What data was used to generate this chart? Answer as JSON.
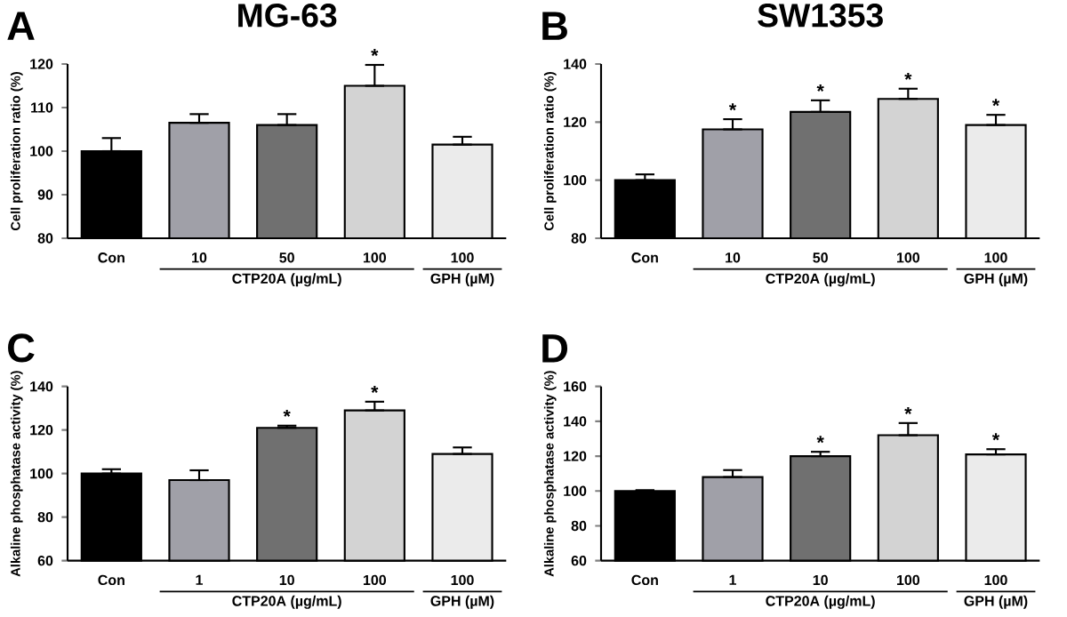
{
  "chart_data": [
    {
      "type": "bar",
      "title": "MG-63",
      "ylabel": "Cell proliferation ratio (%)",
      "categories": [
        "Con",
        "10",
        "50",
        "100",
        "100"
      ],
      "values": [
        100,
        106.5,
        106,
        115,
        101.5
      ],
      "errors": [
        [
          100,
          103
        ],
        [
          106.5,
          108.5
        ],
        [
          106,
          108.5
        ],
        [
          115,
          119.8
        ],
        [
          101.5,
          103.3
        ]
      ],
      "value_labels": [
        null,
        null,
        null,
        "*",
        null
      ],
      "colors": [
        "#000000",
        "#a0a0a8",
        "#707070",
        "#d3d3d3",
        "#ebebeb"
      ],
      "ylim": [
        80,
        120
      ],
      "yticks": [
        80,
        90,
        100,
        110,
        120
      ],
      "annotations": [
        "A",
        "CTP20A (µg/mL)",
        "GPH (µM)"
      ]
    },
    {
      "type": "bar",
      "title": "SW1353",
      "ylabel": "Cell proliferation ratio (%)",
      "categories": [
        "Con",
        "10",
        "50",
        "100",
        "100"
      ],
      "values": [
        100,
        117.5,
        123.5,
        128,
        119
      ],
      "errors": [
        [
          100,
          102
        ],
        [
          117.5,
          121
        ],
        [
          123.5,
          127.5
        ],
        [
          128,
          131.5
        ],
        [
          119,
          122.5
        ]
      ],
      "value_labels": [
        null,
        "*",
        "*",
        "*",
        "*"
      ],
      "colors": [
        "#000000",
        "#a0a0a8",
        "#707070",
        "#d3d3d3",
        "#ebebeb"
      ],
      "ylim": [
        80,
        140
      ],
      "yticks": [
        80,
        100,
        120,
        140
      ],
      "annotations": [
        "B",
        "CTP20A (µg/mL)",
        "GPH (µM)"
      ]
    },
    {
      "type": "bar",
      "ylabel": "Alkaline phosphatase activity (%)",
      "categories": [
        "Con",
        "1",
        "10",
        "100",
        "100"
      ],
      "values": [
        100,
        97,
        121,
        129,
        109
      ],
      "errors": [
        [
          100,
          102
        ],
        [
          97,
          101.5
        ],
        [
          121,
          122
        ],
        [
          129,
          133
        ],
        [
          109,
          112
        ]
      ],
      "value_labels": [
        null,
        null,
        "*",
        "*",
        null
      ],
      "colors": [
        "#000000",
        "#a0a0a8",
        "#707070",
        "#d3d3d3",
        "#ebebeb"
      ],
      "ylim": [
        60,
        140
      ],
      "yticks": [
        60,
        80,
        100,
        120,
        140
      ],
      "annotations": [
        "C",
        "CTP20A (µg/mL)",
        "GPH (µM)"
      ]
    },
    {
      "type": "bar",
      "ylabel": "Alkaline phosphatase activity (%)",
      "categories": [
        "Con",
        "1",
        "10",
        "100",
        "100"
      ],
      "values": [
        100,
        108,
        120,
        132,
        121
      ],
      "errors": [
        [
          100,
          100.5
        ],
        [
          108,
          112
        ],
        [
          120,
          122.5
        ],
        [
          132,
          139
        ],
        [
          121,
          124
        ]
      ],
      "value_labels": [
        null,
        null,
        "*",
        "*",
        "*"
      ],
      "colors": [
        "#000000",
        "#a0a0a8",
        "#707070",
        "#d3d3d3",
        "#ebebeb"
      ],
      "ylim": [
        60,
        160
      ],
      "yticks": [
        60,
        80,
        100,
        120,
        140,
        160
      ],
      "annotations": [
        "D",
        "CTP20A (µg/mL)",
        "GPH (µM)"
      ]
    }
  ]
}
